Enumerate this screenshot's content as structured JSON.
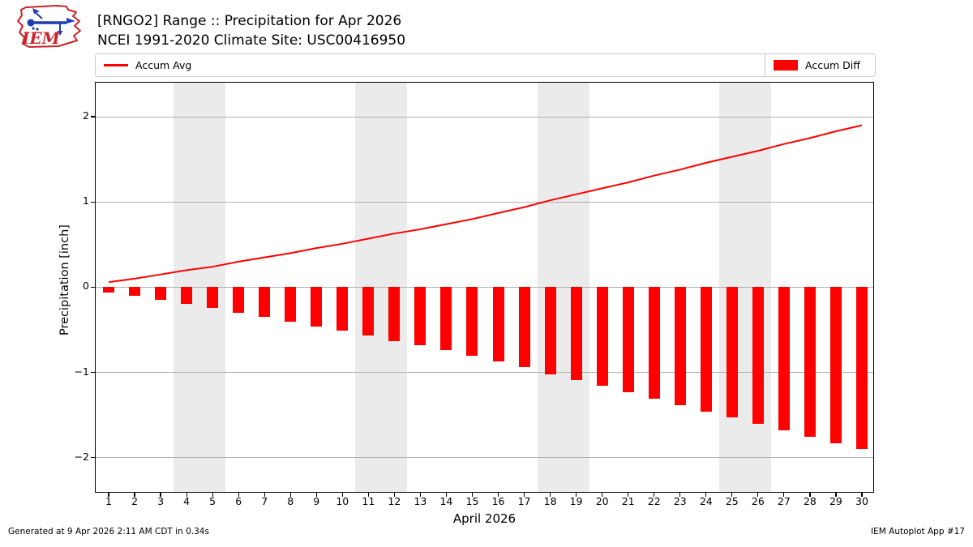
{
  "header": {
    "logo_text": "IEM"
  },
  "footer": {
    "left": "Generated at 9 Apr 2026 2:11 AM CDT in 0.34s",
    "right": "IEM Autoplot App #17"
  },
  "colors": {
    "accent_red": "#ff0000",
    "weekend_band": "#ebebeb",
    "gridline": "#b0b0b0",
    "logo_red": "#cc2229",
    "logo_blue": "#1f3db0"
  },
  "chart_data": {
    "type": "bar",
    "title": "[RNGO2] Range :: Precipitation for Apr 2026",
    "subtitle": "NCEI 1991-2020 Climate Site: USC00416950",
    "xlabel": "April 2026",
    "ylabel": "Precipitation [inch]",
    "x": [
      1,
      2,
      3,
      4,
      5,
      6,
      7,
      8,
      9,
      10,
      11,
      12,
      13,
      14,
      15,
      16,
      17,
      18,
      19,
      20,
      21,
      22,
      23,
      24,
      25,
      26,
      27,
      28,
      29,
      30
    ],
    "series": [
      {
        "name": "Accum Avg",
        "type": "line",
        "color": "#ff0000",
        "values": [
          0.06,
          0.1,
          0.15,
          0.2,
          0.24,
          0.3,
          0.35,
          0.4,
          0.46,
          0.51,
          0.57,
          0.63,
          0.68,
          0.74,
          0.8,
          0.87,
          0.94,
          1.02,
          1.09,
          1.16,
          1.23,
          1.31,
          1.38,
          1.46,
          1.53,
          1.6,
          1.68,
          1.75,
          1.83,
          1.9
        ]
      },
      {
        "name": "Accum Diff",
        "type": "bar",
        "color": "#ff0000",
        "values": [
          -0.06,
          -0.1,
          -0.15,
          -0.2,
          -0.24,
          -0.3,
          -0.35,
          -0.4,
          -0.46,
          -0.51,
          -0.57,
          -0.63,
          -0.68,
          -0.74,
          -0.8,
          -0.87,
          -0.94,
          -1.02,
          -1.09,
          -1.16,
          -1.23,
          -1.31,
          -1.38,
          -1.46,
          -1.53,
          -1.6,
          -1.68,
          -1.75,
          -1.83,
          -1.9
        ]
      }
    ],
    "ylim": [
      -2.42,
      2.4
    ],
    "yticks": [
      -2,
      -1,
      0,
      1,
      2
    ],
    "xlim": [
      0.5,
      30.5
    ],
    "weekend_bands": [
      [
        3.5,
        5.5
      ],
      [
        10.5,
        12.5
      ],
      [
        17.5,
        19.5
      ],
      [
        24.5,
        26.5
      ]
    ],
    "grid": true,
    "legend_position": "top"
  }
}
